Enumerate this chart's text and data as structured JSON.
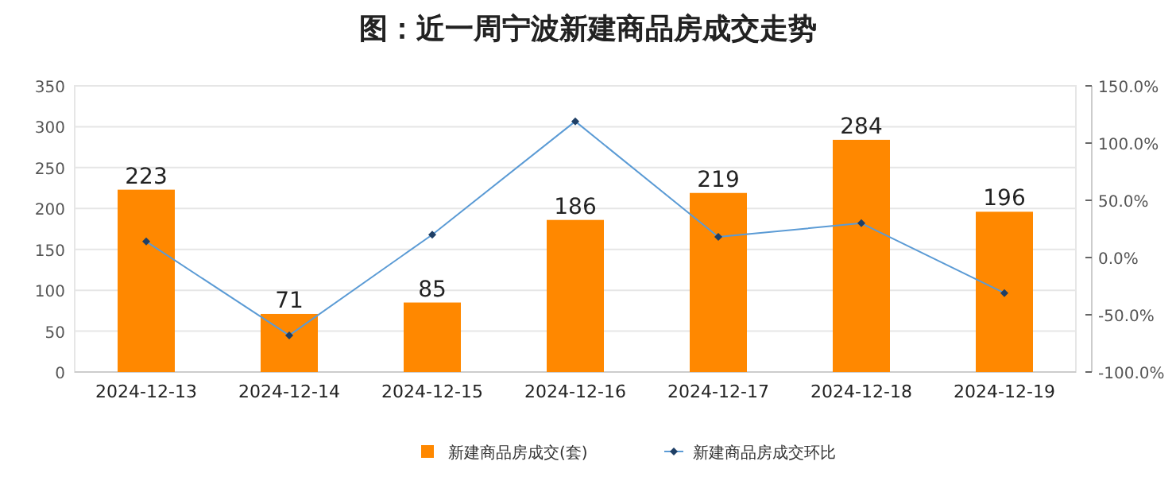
{
  "chart_data": {
    "type": "bar",
    "title": "图：近一周宁波新建商品房成交走势",
    "categories": [
      "2024-12-13",
      "2024-12-14",
      "2024-12-15",
      "2024-12-16",
      "2024-12-17",
      "2024-12-18",
      "2024-12-19"
    ],
    "series": [
      {
        "name": "新建商品房成交(套)",
        "color": "#ff8800",
        "values": [
          223,
          71,
          85,
          186,
          219,
          284,
          196
        ],
        "data_labels": true
      },
      {
        "name": "新建商品房成交环比",
        "type": "line",
        "axis": "y2",
        "color": "#5b9bd5",
        "values": [
          14,
          -68,
          20,
          119,
          18,
          30,
          -31
        ],
        "marker": "diamond"
      }
    ],
    "ylim": [
      0,
      350
    ],
    "yticks": [
      0,
      50,
      100,
      150,
      200,
      250,
      300,
      350
    ],
    "y2lim": [
      -100,
      150
    ],
    "y2ticks": [
      {
        "value": -100,
        "label": "-100.0%"
      },
      {
        "value": -50,
        "label": "-50.0%"
      },
      {
        "value": 0,
        "label": "0.0%"
      },
      {
        "value": 50,
        "label": "50.0%"
      },
      {
        "value": 100,
        "label": "100.0%"
      },
      {
        "value": 150,
        "label": "150.0%"
      }
    ],
    "grid": "y",
    "legend": "bottom"
  }
}
